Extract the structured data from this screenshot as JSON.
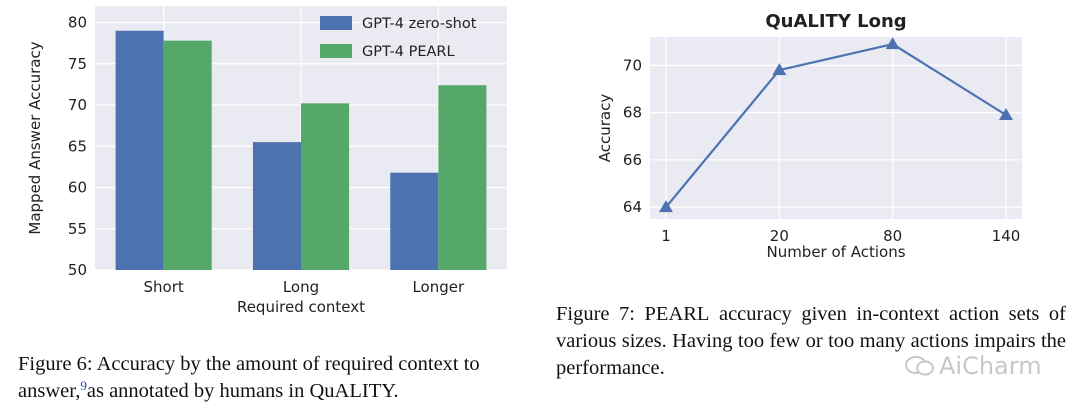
{
  "chart_data": [
    {
      "type": "bar",
      "categories": [
        "Short",
        "Long",
        "Longer"
      ],
      "series": [
        {
          "name": "GPT-4 zero-shot",
          "values": [
            79.0,
            65.5,
            61.8
          ],
          "color": "#4c72b0"
        },
        {
          "name": "GPT-4 PEARL",
          "values": [
            77.8,
            70.2,
            72.4
          ],
          "color": "#55a868"
        }
      ],
      "title": "",
      "xlabel": "Required context",
      "ylabel": "Mapped Answer Accuracy",
      "ylim": [
        50,
        82
      ],
      "yticks": [
        50,
        55,
        60,
        65,
        70,
        75,
        80
      ],
      "grid": true,
      "legend": "top-right"
    },
    {
      "type": "line",
      "categories": [
        "1",
        "20",
        "80",
        "140"
      ],
      "series": [
        {
          "name": "",
          "values": [
            64.0,
            69.8,
            70.9,
            67.9
          ],
          "color": "#4c72b0",
          "marker": "triangle"
        }
      ],
      "title": "QuALITY Long",
      "xlabel": "Number of Actions",
      "ylabel": "Accuracy",
      "ylim": [
        63.5,
        71.2
      ],
      "yticks": [
        64,
        66,
        68,
        70
      ],
      "grid": true
    }
  ],
  "captions": {
    "fig6": {
      "part1": "Figure 6: Accuracy by the amount of required context to answer,",
      "footnote": "9",
      "part2": "as annotated by humans in QuALITY."
    },
    "fig7": {
      "prefix": "Figure 7: P",
      "smallcaps": "EARL",
      "rest": " accuracy given in-context action sets of various sizes. Having too few or too many actions impairs the performance."
    }
  },
  "watermark": {
    "text": "AiCharm"
  }
}
